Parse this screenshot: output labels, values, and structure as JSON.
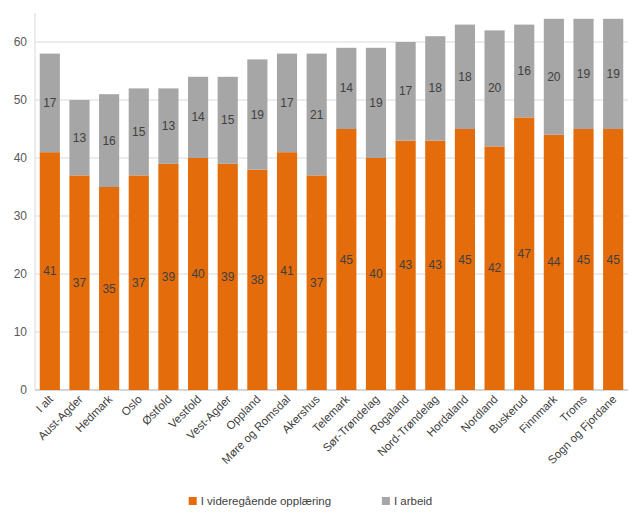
{
  "chart_data": {
    "type": "bar",
    "stacked": true,
    "data_labels": true,
    "grid": true,
    "legend": "bottom",
    "categories": [
      "I alt",
      "Aust-Agder",
      "Hedmark",
      "Oslo",
      "Østfold",
      "Vestfold",
      "Vest-Agder",
      "Oppland",
      "Møre og Romsdal",
      "Akershus",
      "Telemark",
      "Sør-Trøndelag",
      "Rogaland",
      "Nord-Trøndelag",
      "Hordaland",
      "Nordland",
      "Buskerud",
      "Finnmark",
      "Troms",
      "Sogn og Fjordane"
    ],
    "series": [
      {
        "name": "I videregående opplæring",
        "color": "#e46c0a",
        "values": [
          41,
          37,
          35,
          37,
          39,
          40,
          39,
          38,
          41,
          37,
          45,
          40,
          43,
          43,
          45,
          42,
          47,
          44,
          45,
          45
        ]
      },
      {
        "name": "I arbeid",
        "color": "#a6a6a6",
        "values": [
          17,
          13,
          16,
          15,
          13,
          14,
          15,
          19,
          17,
          21,
          14,
          19,
          17,
          18,
          18,
          20,
          16,
          20,
          19,
          19
        ]
      }
    ],
    "ylim": [
      0,
      65
    ],
    "yticks": [
      0,
      10,
      20,
      30,
      40,
      50,
      60
    ]
  }
}
